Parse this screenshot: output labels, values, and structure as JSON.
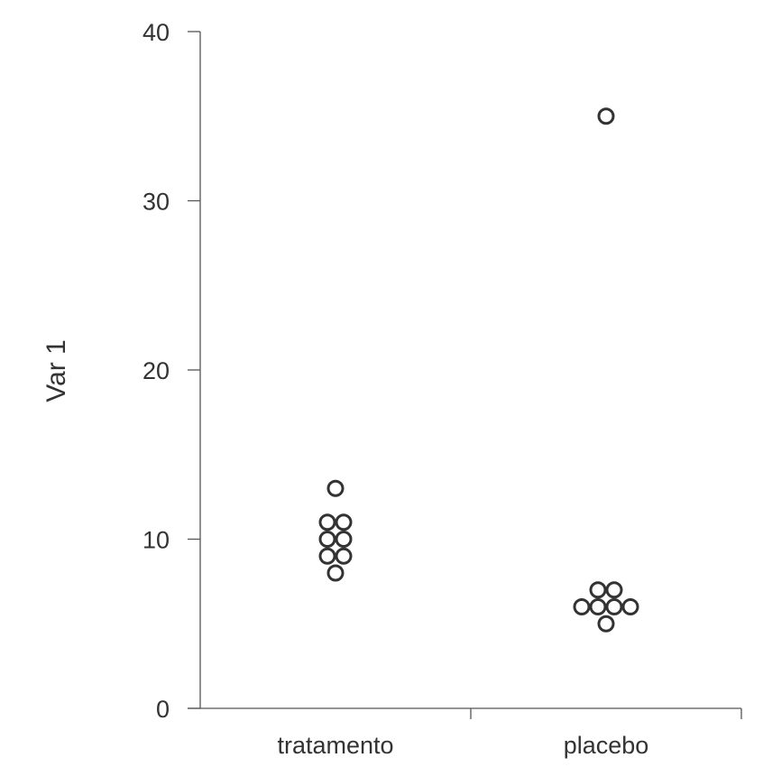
{
  "chart_data": {
    "type": "scatter",
    "title": "",
    "xlabel": "",
    "ylabel": "Var 1",
    "ylim": [
      0,
      40
    ],
    "yticks": [
      0,
      10,
      20,
      30,
      40
    ],
    "categories": [
      "tratamento",
      "placebo"
    ],
    "grid": false,
    "marker": "open-circle",
    "marker_color": "#333333",
    "groups": [
      {
        "category": "tratamento",
        "values": [
          13,
          11,
          11,
          10,
          10,
          9,
          9,
          8
        ]
      },
      {
        "category": "placebo",
        "values": [
          35,
          7,
          7,
          6,
          6,
          6,
          6,
          5
        ]
      }
    ]
  }
}
